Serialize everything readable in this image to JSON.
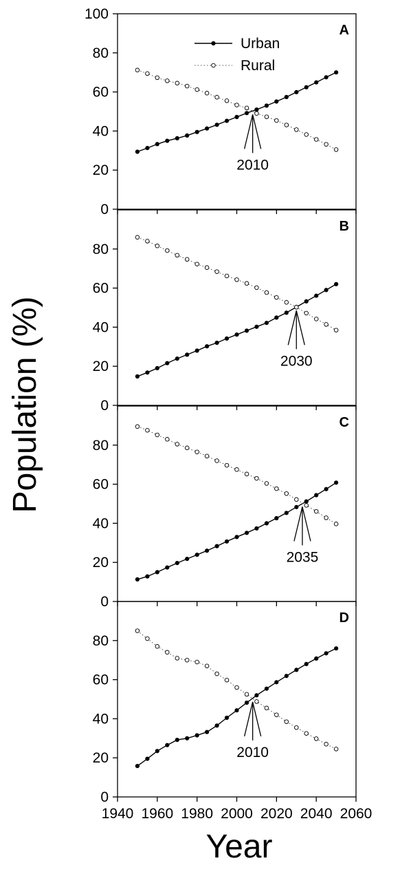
{
  "chart_data": {
    "type": "line",
    "ylabel": "Population (%)",
    "xlabel": "Year",
    "xlim": [
      1940,
      2060
    ],
    "xticks": [
      1940,
      1960,
      1980,
      2000,
      2020,
      2040,
      2060
    ],
    "ylim": [
      0,
      100
    ],
    "grid": false,
    "legend": {
      "placement": "top-center of panel A",
      "entries": [
        "Urban",
        "Rural"
      ]
    },
    "x": [
      1950,
      1955,
      1960,
      1965,
      1970,
      1975,
      1980,
      1985,
      1990,
      1995,
      2000,
      2005,
      2010,
      2015,
      2020,
      2025,
      2030,
      2035,
      2040,
      2045,
      2050
    ],
    "panels": [
      {
        "label": "A",
        "yticks": [
          0,
          20,
          40,
          60,
          80,
          100
        ],
        "annotation": "2010",
        "crossover_x": 2008,
        "series": [
          {
            "name": "Urban",
            "values": [
              29.4,
              31.3,
              33.3,
              35.0,
              36.3,
              37.7,
              39.5,
              41.3,
              43.2,
              45.2,
              47.2,
              49.2,
              51.0,
              53.0,
              55.1,
              57.4,
              59.9,
              62.4,
              64.9,
              67.5,
              70.0
            ]
          },
          {
            "name": "Rural",
            "values": [
              71.2,
              69.4,
              67.3,
              65.7,
              64.5,
              63.0,
              61.2,
              59.4,
              57.3,
              55.5,
              53.3,
              51.8,
              49.0,
              47.3,
              45.4,
              43.1,
              40.7,
              38.2,
              35.7,
              33.2,
              30.5
            ]
          }
        ]
      },
      {
        "label": "B",
        "yticks": [
          0,
          20,
          40,
          60,
          80
        ],
        "annotation": "2030",
        "crossover_x": 2030,
        "series": [
          {
            "name": "Urban",
            "values": [
              14.8,
              16.8,
              19.0,
              21.6,
              23.9,
              25.9,
              28.0,
              30.2,
              32.0,
              34.2,
              36.2,
              38.2,
              40.2,
              42.2,
              44.9,
              47.4,
              50.3,
              53.2,
              56.1,
              59.0,
              62.0
            ]
          },
          {
            "name": "Rural",
            "values": [
              86.0,
              84.0,
              81.6,
              79.2,
              76.8,
              74.7,
              72.3,
              70.5,
              68.4,
              66.2,
              64.3,
              62.4,
              60.2,
              57.7,
              55.2,
              52.7,
              50.2,
              47.2,
              44.2,
              41.4,
              38.5
            ]
          }
        ]
      },
      {
        "label": "C",
        "yticks": [
          0,
          20,
          40,
          60,
          80
        ],
        "annotation": "2035",
        "crossover_x": 2033,
        "series": [
          {
            "name": "Urban",
            "values": [
              11.3,
              12.8,
              15.0,
              17.4,
              19.7,
              21.8,
              23.9,
              26.0,
              28.3,
              30.7,
              33.0,
              35.1,
              37.4,
              40.0,
              42.6,
              45.3,
              48.3,
              51.2,
              54.4,
              57.5,
              60.8
            ]
          },
          {
            "name": "Rural",
            "values": [
              89.5,
              87.6,
              85.2,
              83.0,
              80.5,
              78.6,
              76.5,
              74.4,
              72.0,
              69.7,
              67.5,
              65.2,
              63.0,
              60.4,
              57.7,
              55.2,
              52.2,
              49.2,
              46.1,
              42.8,
              39.7
            ]
          }
        ]
      },
      {
        "label": "D",
        "yticks": [
          0,
          20,
          40,
          60,
          80
        ],
        "annotation": "2010",
        "crossover_x": 2008,
        "series": [
          {
            "name": "Urban",
            "values": [
              15.8,
              19.5,
              23.5,
              26.5,
              29.2,
              30.0,
              31.5,
              33.2,
              36.5,
              40.5,
              44.3,
              48.2,
              52.0,
              55.4,
              58.7,
              61.9,
              65.0,
              68.0,
              70.8,
              73.5,
              76.0
            ]
          },
          {
            "name": "Rural",
            "values": [
              85.0,
              81.0,
              77.0,
              74.0,
              71.0,
              70.0,
              69.0,
              67.0,
              63.0,
              59.8,
              56.0,
              52.5,
              48.8,
              45.5,
              42.0,
              38.5,
              35.5,
              32.5,
              29.8,
              27.0,
              24.5
            ]
          }
        ]
      }
    ]
  }
}
